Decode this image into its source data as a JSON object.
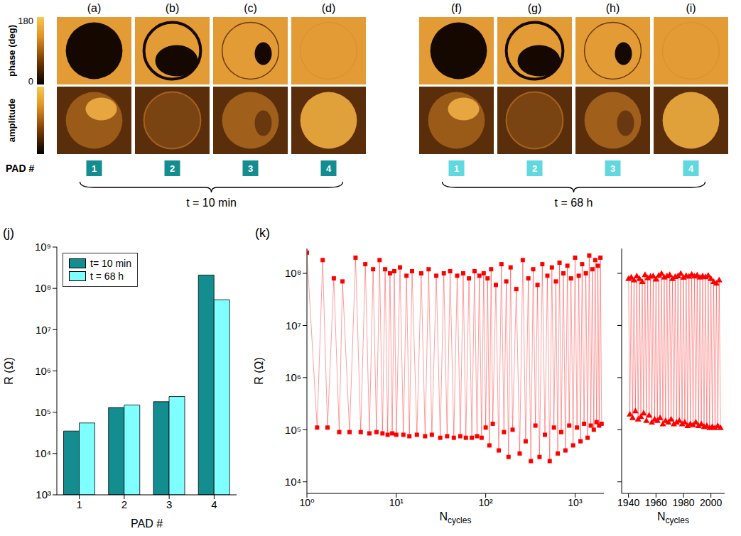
{
  "image_panels": {
    "phase_label": "phase (deg)",
    "phase_colorbar": {
      "range": [
        0,
        180
      ],
      "ticks": [
        0,
        180
      ]
    },
    "amplitude_label": "amplitude",
    "row_label": "PAD #",
    "groups": [
      {
        "time": "t = 10 min",
        "color": "#138d90",
        "panels": [
          {
            "letter": "(a)",
            "pad": 1
          },
          {
            "letter": "(b)",
            "pad": 2
          },
          {
            "letter": "(c)",
            "pad": 3
          },
          {
            "letter": "(d)",
            "pad": 4
          }
        ]
      },
      {
        "time": "t = 68 h",
        "color": "#5fd8e0",
        "panels": [
          {
            "letter": "(f)",
            "pad": 1
          },
          {
            "letter": "(g)",
            "pad": 2
          },
          {
            "letter": "(h)",
            "pad": 3
          },
          {
            "letter": "(i)",
            "pad": 4
          }
        ]
      }
    ]
  },
  "chart_data": [
    {
      "type": "bar",
      "title": "(j)",
      "categories": [
        "1",
        "2",
        "3",
        "4"
      ],
      "x_label": "PAD #",
      "y_label": "R (Ω)",
      "log": "y",
      "ylim": [
        1000,
        1000000000
      ],
      "yticks": [
        {
          "value": 1000,
          "label": "10³"
        },
        {
          "value": 10000,
          "label": "10⁴"
        },
        {
          "value": 100000,
          "label": "10⁵"
        },
        {
          "value": 1000000,
          "label": "10⁶"
        },
        {
          "value": 10000000,
          "label": "10⁷"
        },
        {
          "value": 100000000,
          "label": "10⁸"
        },
        {
          "value": 1000000000,
          "label": "10⁹"
        }
      ],
      "legend": "upper left",
      "series": [
        {
          "name": "t= 10 min",
          "color": "#138d90",
          "values": [
            35000,
            130000,
            180000,
            210000000
          ]
        },
        {
          "name": "t = 68 h",
          "color": "#7fffff",
          "values": [
            55000,
            150000,
            240000,
            53000000
          ]
        }
      ]
    },
    {
      "type": "line",
      "title": "(k)",
      "x_label": "Ncycles",
      "y_label": "R (Ω)",
      "log": true,
      "xlim": [
        1,
        2100
      ],
      "xticks": [
        {
          "value": 1,
          "label": "10⁰"
        },
        {
          "value": 10,
          "label": "10¹"
        },
        {
          "value": 100,
          "label": "10²"
        },
        {
          "value": 1000,
          "label": "10³"
        }
      ],
      "ylim": [
        6000,
        300000000
      ],
      "yticks": [
        {
          "value": 10000,
          "label": "10⁴"
        },
        {
          "value": 100000,
          "label": "10⁵"
        },
        {
          "value": 1000000,
          "label": "10⁶"
        },
        {
          "value": 10000000,
          "label": "10⁷"
        },
        {
          "value": 100000000,
          "label": "10⁸"
        }
      ],
      "series": [
        {
          "color": "#ff0000",
          "marker": "square",
          "x": [
            1,
            1.3,
            1.5,
            1.7,
            2,
            2.3,
            2.5,
            3,
            3.5,
            4,
            4.5,
            5,
            5.5,
            6,
            6.5,
            7,
            7.5,
            8,
            8.5,
            9,
            9.5,
            10,
            11,
            12,
            13,
            14,
            15,
            17,
            19,
            21,
            23,
            25,
            28,
            31,
            34,
            37,
            40,
            44,
            48,
            52,
            56,
            60,
            65,
            70,
            75,
            80,
            85,
            90,
            95,
            100,
            105,
            110,
            115,
            120,
            130,
            140,
            150,
            160,
            170,
            180,
            190,
            200,
            220,
            240,
            260,
            280,
            300,
            320,
            340,
            360,
            380,
            400,
            430,
            460,
            490,
            520,
            550,
            580,
            610,
            640,
            670,
            700,
            740,
            780,
            820,
            860,
            900,
            950,
            1000,
            1050,
            1100,
            1150,
            1200,
            1260,
            1320,
            1380,
            1440,
            1500,
            1560,
            1620,
            1680,
            1740,
            1800,
            1860,
            1920,
            1980
          ],
          "values": [
            250000000.0,
            110000.0,
            180000000.0,
            110000.0,
            80000000.0,
            90000.0,
            70000000.0,
            90000.0,
            200000000.0,
            90000.0,
            150000000.0,
            85000.0,
            120000000.0,
            90000.0,
            180000000.0,
            85000.0,
            120000000.0,
            80000.0,
            100000000.0,
            85000.0,
            110000000.0,
            80000.0,
            130000000.0,
            80000.0,
            90000000.0,
            75000.0,
            110000000.0,
            80000.0,
            100000000.0,
            75000.0,
            120000000.0,
            80000.0,
            90000000.0,
            70000.0,
            100000000.0,
            75000.0,
            110000000.0,
            70000.0,
            90000000.0,
            75000.0,
            100000000.0,
            70000.0,
            80000000.0,
            70000.0,
            110000000.0,
            75000.0,
            90000000.0,
            70000.0,
            100000000.0,
            110000.0,
            80000000.0,
            50000.0,
            120000000.0,
            130000.0,
            60000000.0,
            40000.0,
            150000000.0,
            90000.0,
            70000000.0,
            30000.0,
            130000000.0,
            100000.0,
            50000000.0,
            35000.0,
            180000000.0,
            60000.0,
            80000000.0,
            25000.0,
            120000000.0,
            120000.0,
            60000000.0,
            30000.0,
            150000000.0,
            80000.0,
            90000000.0,
            25000.0,
            130000000.0,
            110000.0,
            70000000.0,
            35000.0,
            160000000.0,
            90000.0,
            100000000.0,
            40000.0,
            140000000.0,
            120000.0,
            80000000.0,
            50000.0,
            200000000.0,
            110000.0,
            90000000.0,
            60000.0,
            150000000.0,
            130000.0,
            100000000.0,
            70000.0,
            220000000.0,
            120000.0,
            120000000.0,
            100000.0,
            180000000.0,
            140000.0,
            140000000.0,
            120000.0,
            200000000.0,
            130000.0
          ]
        }
      ]
    },
    {
      "type": "line",
      "x_label": "Ncycles",
      "log": "y",
      "xlim": [
        1935,
        2010
      ],
      "xticks": [
        1940,
        1960,
        1980,
        2000
      ],
      "ylim": [
        6000,
        300000000
      ],
      "yticks": [
        {
          "value": 10000,
          "label": "10⁴"
        },
        {
          "value": 100000,
          "label": "10⁵"
        },
        {
          "value": 1000000,
          "label": "10⁶"
        },
        {
          "value": 10000000,
          "label": "10⁷"
        },
        {
          "value": 100000000,
          "label": "10⁸"
        }
      ],
      "tick_labels": "x",
      "series": [
        {
          "color": "#ff0000",
          "marker": "triangle",
          "x": [
            1940,
            1941,
            1942,
            1943,
            1944,
            1945,
            1946,
            1947,
            1948,
            1949,
            1950,
            1951,
            1952,
            1953,
            1954,
            1955,
            1956,
            1957,
            1958,
            1959,
            1960,
            1961,
            1962,
            1963,
            1964,
            1965,
            1966,
            1967,
            1968,
            1969,
            1970,
            1971,
            1972,
            1973,
            1974,
            1975,
            1976,
            1977,
            1978,
            1979,
            1980,
            1981,
            1982,
            1983,
            1984,
            1985,
            1986,
            1987,
            1988,
            1989,
            1990,
            1991,
            1992,
            1993,
            1994,
            1995,
            1996,
            1997,
            1998,
            1999,
            2000,
            2001,
            2002,
            2003,
            2004,
            2005,
            2006,
            2007
          ],
          "values": [
            80000000.0,
            200000.0,
            85000000.0,
            170000.0,
            75000000.0,
            230000.0,
            90000000.0,
            160000.0,
            80000000.0,
            180000.0,
            70000000.0,
            210000.0,
            95000000.0,
            150000.0,
            82000000.0,
            190000.0,
            88000000.0,
            140000.0,
            90000000.0,
            160000.0,
            78000000.0,
            150000.0,
            92000000.0,
            170000.0,
            100000000.0,
            130000.0,
            85000000.0,
            150000.0,
            90000000.0,
            140000.0,
            95000000.0,
            160000.0,
            80000000.0,
            130000.0,
            87000000.0,
            140000.0,
            90000000.0,
            150000.0,
            100000000.0,
            130000.0,
            84000000.0,
            140000.0,
            91000000.0,
            120000.0,
            88000000.0,
            130000.0,
            96000000.0,
            125000.0,
            89000000.0,
            140000.0,
            93000000.0,
            120000.0,
            85000000.0,
            130000.0,
            90000000.0,
            115000.0,
            86000000.0,
            120000.0,
            92000000.0,
            110000.0,
            80000000.0,
            115000.0,
            70000000.0,
            110000.0,
            65000000.0,
            120000.0,
            75000000.0,
            110000.0
          ]
        }
      ]
    }
  ]
}
